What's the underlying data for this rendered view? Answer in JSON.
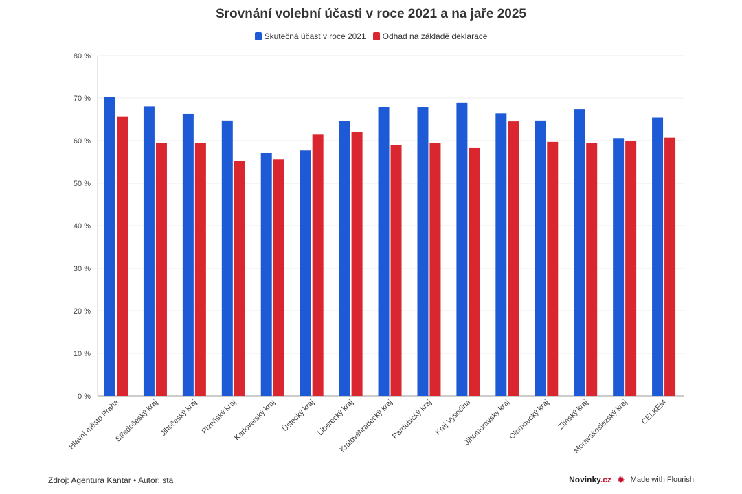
{
  "header": {
    "title": "Srovnání volební účasti v roce 2021 a na jaře 2025"
  },
  "legend": {
    "items": [
      {
        "label": "Skutečná účast v roce 2021",
        "color": "#1f5ad6"
      },
      {
        "label": "Odhad na základě deklarace",
        "color": "#d9262f"
      }
    ]
  },
  "footer": {
    "source": "Zdroj: Agentura Kantar • Autor: sta",
    "brand_logo_text": "Novinky",
    "brand_logo_suffix": ".cz",
    "made_with": "Made with Flourish"
  },
  "chart_data": {
    "type": "bar",
    "title": "Srovnání volební účasti v roce 2021 a na jaře 2025",
    "xlabel": "",
    "ylabel": "",
    "ylim": [
      0,
      80
    ],
    "yticks": [
      0,
      10,
      20,
      30,
      40,
      50,
      60,
      70,
      80
    ],
    "ytick_labels": [
      "0 %",
      "10 %",
      "20 %",
      "30 %",
      "40 %",
      "50 %",
      "60 %",
      "70 %",
      "80 %"
    ],
    "grid": true,
    "legend_position": "top",
    "categories": [
      "Hlavní město Praha",
      "Středočeský kraj",
      "Jihočeský kraj",
      "Plzeňský kraj",
      "Karlovarský kraj",
      "Ústecký kraj",
      "Liberecký kraj",
      "Královéhradecký kraj",
      "Pardubický kraj",
      "Kraj Vysočina",
      "Jihomoravský kraj",
      "Olomoucký kraj",
      "Zlínský kraj",
      "Moravskoslezský kraj",
      "CELKEM"
    ],
    "series": [
      {
        "name": "Skutečná účast v roce 2021",
        "color": "#1f5ad6",
        "values": [
          70.2,
          68.0,
          66.3,
          64.7,
          57.1,
          57.7,
          64.6,
          67.9,
          67.9,
          68.9,
          66.4,
          64.7,
          67.4,
          60.6,
          65.4
        ]
      },
      {
        "name": "Odhad na základě deklarace",
        "color": "#d9262f",
        "values": [
          65.7,
          59.5,
          59.4,
          55.2,
          55.6,
          61.4,
          62.0,
          58.9,
          59.4,
          58.4,
          64.5,
          59.7,
          59.5,
          60.0,
          60.7
        ]
      }
    ]
  }
}
